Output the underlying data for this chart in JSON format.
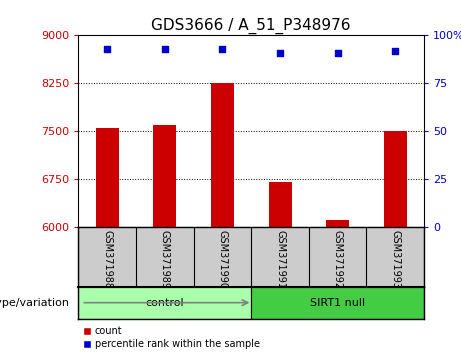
{
  "title": "GDS3666 / A_51_P348976",
  "samples": [
    "GSM371988",
    "GSM371989",
    "GSM371990",
    "GSM371991",
    "GSM371992",
    "GSM371993"
  ],
  "bar_values": [
    7550,
    7600,
    8250,
    6700,
    6100,
    7500
  ],
  "percentile_values": [
    93,
    93,
    93,
    91,
    91,
    92
  ],
  "bar_color": "#cc0000",
  "dot_color": "#0000cc",
  "ylim_left": [
    6000,
    9000
  ],
  "ylim_right": [
    0,
    100
  ],
  "yticks_left": [
    6000,
    6750,
    7500,
    8250,
    9000
  ],
  "yticks_right": [
    0,
    25,
    50,
    75,
    100
  ],
  "groups": [
    {
      "label": "control",
      "indices": [
        0,
        1,
        2
      ],
      "color": "#aaffaa"
    },
    {
      "label": "SIRT1 null",
      "indices": [
        3,
        4,
        5
      ],
      "color": "#44cc44"
    }
  ],
  "group_label": "genotype/variation",
  "legend_count_label": "count",
  "legend_percentile_label": "percentile rank within the sample",
  "grid_color": "#000000",
  "title_fontsize": 11,
  "tick_fontsize": 8,
  "sample_fontsize": 7,
  "group_fontsize": 8,
  "legend_fontsize": 7,
  "bar_width": 0.4,
  "label_bg_color": "#cccccc",
  "background_color": "#ffffff"
}
